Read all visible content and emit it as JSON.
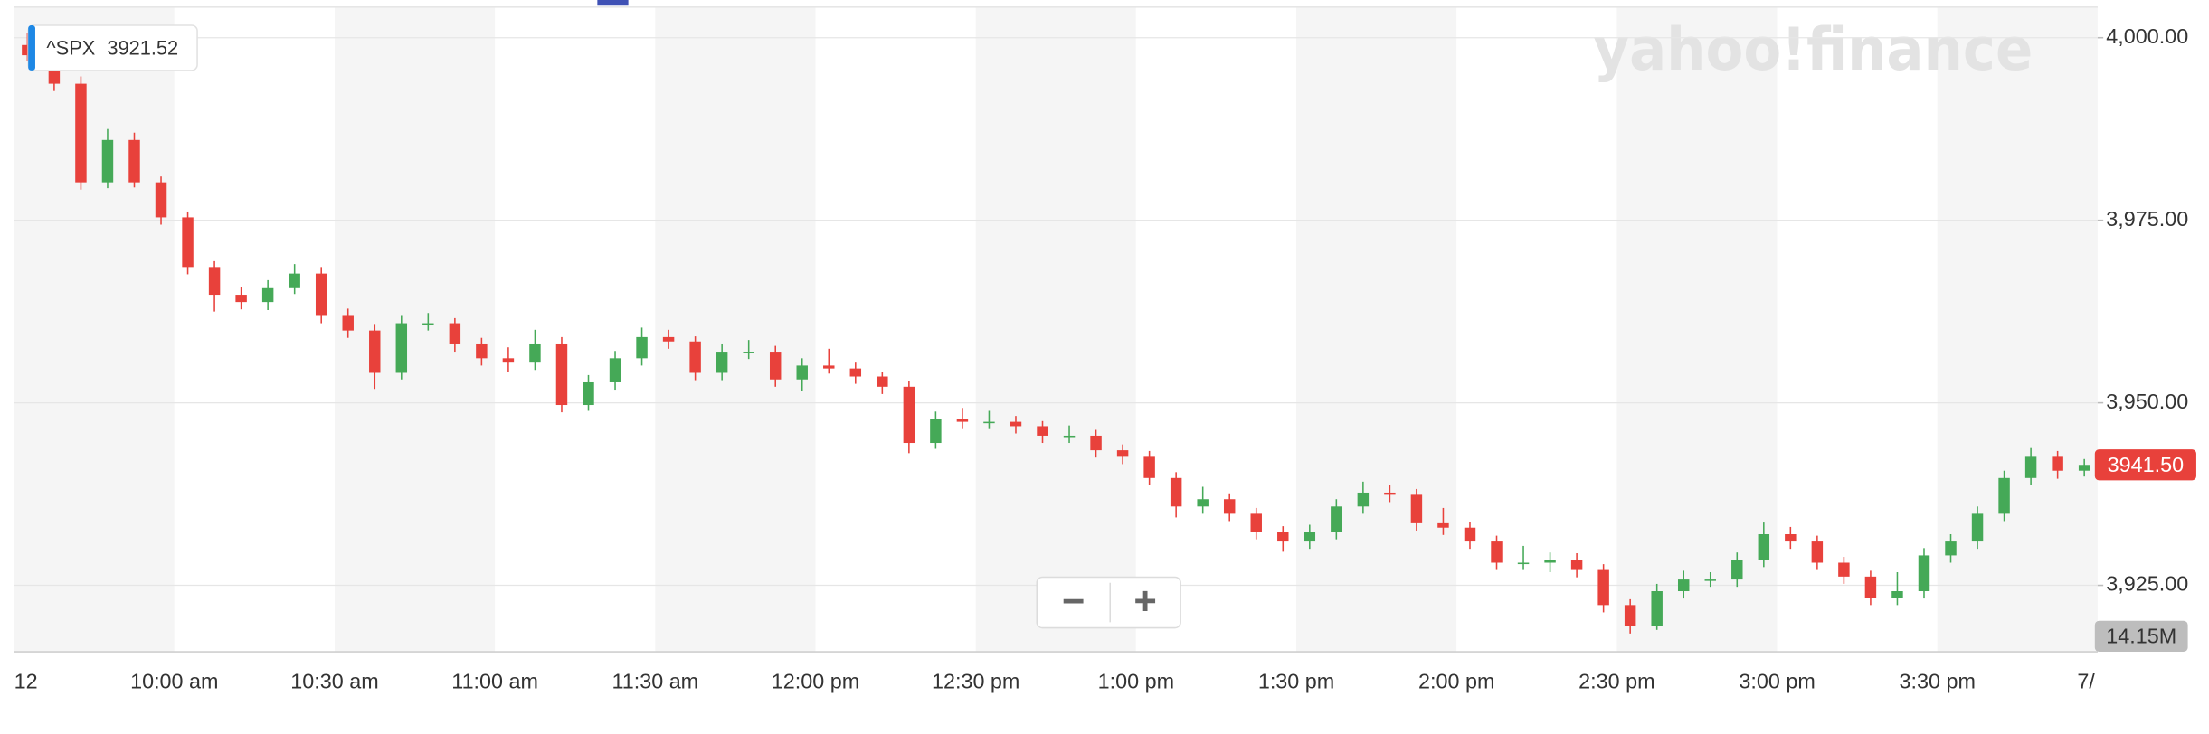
{
  "chart_data": {
    "type": "candlestick",
    "legend_label": "^SPX",
    "legend_value": 3921.52,
    "watermark": "yahoo!finance",
    "last_price": {
      "value": 3941.5,
      "label": "3941.50"
    },
    "volume_label": "14.15M",
    "zoom_out": "−",
    "zoom_in": "+",
    "next_label": "7/",
    "up_color": "#45a957",
    "down_color": "#e8413b",
    "grid": true,
    "ylim": [
      3915.9,
      4004.2
    ],
    "yticks": [
      {
        "value": 3925,
        "label": "3,925.00"
      },
      {
        "value": 3950,
        "label": "3,950.00"
      },
      {
        "value": 3975,
        "label": "3,975.00"
      },
      {
        "value": 4000,
        "label": "4,000.00"
      }
    ],
    "categories": [
      "12",
      null,
      null,
      null,
      null,
      null,
      "10:00 am",
      null,
      null,
      null,
      null,
      null,
      "10:30 am",
      null,
      null,
      null,
      null,
      null,
      "11:00 am",
      null,
      null,
      null,
      null,
      null,
      "11:30 am",
      null,
      null,
      null,
      null,
      null,
      "12:00 pm",
      null,
      null,
      null,
      null,
      null,
      "12:30 pm",
      null,
      null,
      null,
      null,
      null,
      "1:00 pm",
      null,
      null,
      null,
      null,
      null,
      "1:30 pm",
      null,
      null,
      null,
      null,
      null,
      "2:00 pm",
      null,
      null,
      null,
      null,
      null,
      "2:30 pm",
      null,
      null,
      null,
      null,
      null,
      "3:00 pm",
      null,
      null,
      null,
      null,
      null,
      "3:30 pm",
      null,
      null,
      null,
      null,
      null
    ],
    "open": [
      3999.0,
      3997.6,
      3993.7,
      3980.2,
      3986.0,
      3980.2,
      3975.4,
      3968.6,
      3964.8,
      3963.8,
      3965.7,
      3967.7,
      3961.9,
      3959.9,
      3954.1,
      3960.9,
      3960.9,
      3958.0,
      3956.1,
      3955.5,
      3958.0,
      3949.7,
      3952.8,
      3956.1,
      3959.0,
      3958.4,
      3954.1,
      3957.0,
      3957.0,
      3953.2,
      3955.1,
      3954.7,
      3953.6,
      3952.2,
      3944.5,
      3947.8,
      3947.4,
      3947.4,
      3946.8,
      3945.5,
      3945.5,
      3943.5,
      3942.6,
      3939.7,
      3935.8,
      3936.8,
      3934.8,
      3932.3,
      3931.0,
      3932.3,
      3935.8,
      3937.7,
      3937.4,
      3933.5,
      3932.9,
      3931.0,
      3928.1,
      3928.1,
      3928.5,
      3927.1,
      3922.3,
      3919.4,
      3924.2,
      3925.8,
      3925.8,
      3928.5,
      3932.0,
      3931.0,
      3928.1,
      3926.2,
      3923.3,
      3924.2,
      3929.1,
      3931.0,
      3934.8,
      3939.7,
      3942.6,
      3940.7
    ],
    "high": [
      4000.6,
      3998.6,
      3994.7,
      3987.5,
      3987.0,
      3981.0,
      3976.2,
      3969.4,
      3965.9,
      3966.8,
      3969.0,
      3968.6,
      3962.9,
      3960.8,
      3961.9,
      3962.3,
      3961.6,
      3958.9,
      3957.6,
      3960.0,
      3959.0,
      3953.8,
      3957.1,
      3960.3,
      3960.0,
      3959.1,
      3958.0,
      3958.6,
      3957.8,
      3956.1,
      3957.4,
      3955.5,
      3954.2,
      3953.0,
      3948.8,
      3949.3,
      3948.9,
      3948.2,
      3947.5,
      3946.9,
      3946.3,
      3944.3,
      3943.4,
      3940.5,
      3938.5,
      3937.6,
      3935.6,
      3933.1,
      3933.3,
      3936.8,
      3939.2,
      3938.7,
      3938.2,
      3935.6,
      3933.7,
      3931.8,
      3930.4,
      3929.5,
      3929.4,
      3927.9,
      3923.1,
      3925.2,
      3927.0,
      3926.8,
      3929.5,
      3933.6,
      3933.0,
      3931.8,
      3928.9,
      3927.0,
      3926.8,
      3930.1,
      3932.0,
      3935.8,
      3940.7,
      3943.8,
      3943.4,
      3942.3
    ],
    "low": [
      3996.8,
      3992.7,
      3979.2,
      3979.4,
      3979.5,
      3974.4,
      3967.6,
      3962.5,
      3962.8,
      3962.7,
      3964.9,
      3960.9,
      3958.9,
      3951.9,
      3953.2,
      3959.9,
      3957.0,
      3955.1,
      3954.2,
      3954.5,
      3948.7,
      3948.9,
      3951.8,
      3955.1,
      3957.4,
      3953.1,
      3953.1,
      3956.0,
      3952.2,
      3951.6,
      3954.0,
      3952.6,
      3951.2,
      3943.1,
      3943.7,
      3946.4,
      3946.4,
      3945.8,
      3944.5,
      3944.5,
      3942.5,
      3941.6,
      3938.7,
      3934.3,
      3934.8,
      3933.8,
      3931.3,
      3929.6,
      3930.0,
      3931.3,
      3934.8,
      3936.4,
      3932.5,
      3931.9,
      3930.0,
      3927.1,
      3927.1,
      3926.8,
      3926.1,
      3921.3,
      3918.4,
      3918.9,
      3923.2,
      3924.8,
      3924.8,
      3927.5,
      3930.0,
      3927.1,
      3925.2,
      3922.3,
      3922.3,
      3923.2,
      3928.1,
      3930.0,
      3933.8,
      3938.7,
      3939.6,
      3939.9
    ],
    "close": [
      3997.6,
      3993.7,
      3980.2,
      3986.0,
      3980.2,
      3975.4,
      3968.6,
      3964.8,
      3963.8,
      3965.7,
      3967.7,
      3961.9,
      3959.9,
      3954.1,
      3960.9,
      3960.9,
      3958.0,
      3956.1,
      3955.5,
      3958.0,
      3949.7,
      3952.8,
      3956.1,
      3959.0,
      3958.4,
      3954.1,
      3957.0,
      3957.0,
      3953.2,
      3955.1,
      3954.7,
      3953.6,
      3952.2,
      3944.5,
      3947.8,
      3947.4,
      3947.4,
      3946.8,
      3945.5,
      3945.5,
      3943.5,
      3942.6,
      3939.7,
      3935.8,
      3936.8,
      3934.8,
      3932.3,
      3931.0,
      3932.3,
      3935.8,
      3937.7,
      3937.4,
      3933.5,
      3932.9,
      3931.0,
      3928.1,
      3928.1,
      3928.5,
      3927.1,
      3922.3,
      3919.4,
      3924.2,
      3925.8,
      3925.8,
      3928.5,
      3932.0,
      3931.0,
      3928.1,
      3926.2,
      3923.3,
      3924.2,
      3929.1,
      3931.0,
      3934.8,
      3939.7,
      3942.6,
      3940.7,
      3941.5
    ]
  }
}
